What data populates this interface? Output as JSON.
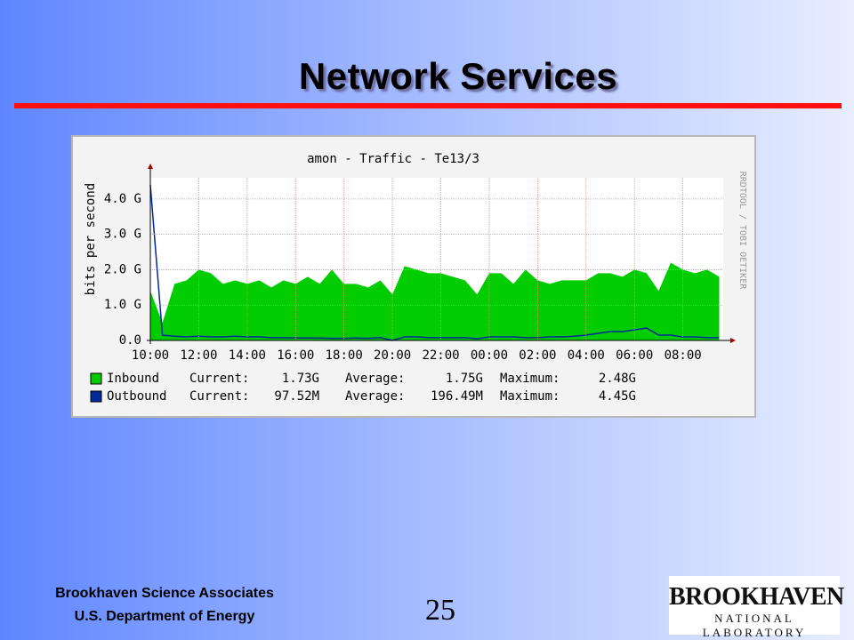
{
  "slide": {
    "title": "Network Services",
    "footer_org": "Brookhaven Science Associates",
    "footer_dept": "U.S. Department of Energy",
    "page_number": "25",
    "logo_main": "BROOKHAVEN",
    "logo_sub": "NATIONAL LABORATORY"
  },
  "chart_data": {
    "type": "area_line",
    "title": "amon - Traffic - Te13/3",
    "y_label": "bits per second",
    "side_label": "RRDTOOL / TOBI OETIKER",
    "x": [
      "10:00",
      "10:30",
      "11:00",
      "11:30",
      "12:00",
      "12:30",
      "13:00",
      "13:30",
      "14:00",
      "14:30",
      "15:00",
      "15:30",
      "16:00",
      "16:30",
      "17:00",
      "17:30",
      "18:00",
      "18:30",
      "19:00",
      "19:30",
      "20:00",
      "20:30",
      "21:00",
      "21:30",
      "22:00",
      "22:30",
      "23:00",
      "23:30",
      "00:00",
      "00:30",
      "01:00",
      "01:30",
      "02:00",
      "02:30",
      "03:00",
      "03:30",
      "04:00",
      "04:30",
      "05:00",
      "05:30",
      "06:00",
      "06:30",
      "07:00",
      "07:30",
      "08:00",
      "08:30",
      "09:00",
      "09:30"
    ],
    "xlim": [
      "10:00",
      "09:40"
    ],
    "xticks": [
      "10:00",
      "12:00",
      "14:00",
      "16:00",
      "18:00",
      "20:00",
      "22:00",
      "00:00",
      "02:00",
      "04:00",
      "06:00",
      "08:00"
    ],
    "ylim": [
      0,
      4.6
    ],
    "yticks": [
      {
        "value": 0,
        "label": "0.0"
      },
      {
        "value": 1,
        "label": "1.0 G"
      },
      {
        "value": 2,
        "label": "2.0 G"
      },
      {
        "value": 3,
        "label": "3.0 G"
      },
      {
        "value": 4,
        "label": "4.0 G"
      }
    ],
    "grid": true,
    "stat_labels": [
      "Current:",
      "Average:",
      "Maximum:"
    ],
    "series": [
      {
        "name": "Inbound",
        "color": "#00cc00",
        "style": "area",
        "stats": [
          "1.73G",
          "1.75G",
          "2.48G"
        ],
        "values": [
          1.4,
          0.5,
          1.6,
          1.7,
          2.0,
          1.9,
          1.6,
          1.7,
          1.6,
          1.7,
          1.5,
          1.7,
          1.6,
          1.8,
          1.6,
          2.0,
          1.6,
          1.6,
          1.5,
          1.7,
          1.3,
          2.1,
          2.0,
          1.9,
          1.9,
          1.8,
          1.7,
          1.3,
          1.9,
          1.9,
          1.6,
          2.0,
          1.7,
          1.6,
          1.7,
          1.7,
          1.7,
          1.9,
          1.9,
          1.8,
          2.0,
          1.9,
          1.4,
          2.2,
          2.0,
          1.9,
          2.0,
          1.8
        ]
      },
      {
        "name": "Outbound",
        "color": "#002a97",
        "style": "line",
        "stats": [
          "97.52M",
          "196.49M",
          "4.45G"
        ],
        "values": [
          4.4,
          0.15,
          0.12,
          0.1,
          0.12,
          0.1,
          0.1,
          0.12,
          0.1,
          0.1,
          0.08,
          0.08,
          0.07,
          0.07,
          0.07,
          0.06,
          0.06,
          0.07,
          0.06,
          0.08,
          0.0,
          0.1,
          0.1,
          0.08,
          0.08,
          0.08,
          0.08,
          0.05,
          0.1,
          0.1,
          0.1,
          0.08,
          0.08,
          0.1,
          0.1,
          0.12,
          0.15,
          0.2,
          0.25,
          0.25,
          0.3,
          0.35,
          0.15,
          0.15,
          0.1,
          0.1,
          0.08,
          0.08
        ]
      }
    ]
  }
}
